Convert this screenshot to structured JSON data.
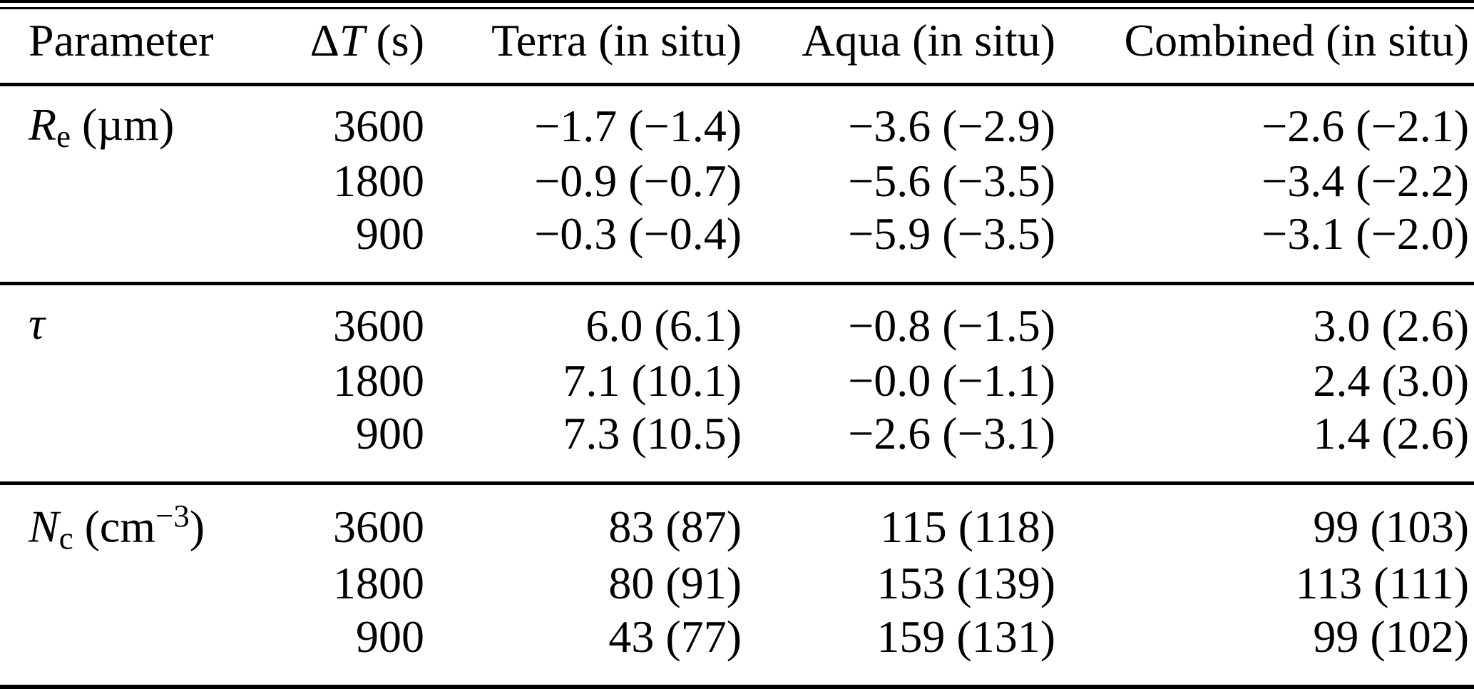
{
  "page": {
    "background_color": "#ffffff",
    "text_color": "#000000",
    "rule_color": "#000000"
  },
  "table": {
    "header": {
      "parameter": "Parameter",
      "delta_t": {
        "delta": "Δ",
        "symbol": "T",
        "unit": " (s)"
      },
      "terra": "Terra (in situ)",
      "aqua": "Aqua (in situ)",
      "combined": "Combined (in situ)"
    },
    "sections": [
      {
        "parameter": {
          "symbol": "R",
          "subscript": "e",
          "unit": " (µm)"
        },
        "rows": [
          {
            "delta_t": "3600",
            "terra": "−1.7 (−1.4)",
            "aqua": "−3.6 (−2.9)",
            "combined": "−2.6 (−2.1)"
          },
          {
            "delta_t": "1800",
            "terra": "−0.9 (−0.7)",
            "aqua": "−5.6 (−3.5)",
            "combined": "−3.4 (−2.2)"
          },
          {
            "delta_t": "900",
            "terra": "−0.3 (−0.4)",
            "aqua": "−5.9 (−3.5)",
            "combined": "−3.1 (−2.0)"
          }
        ]
      },
      {
        "parameter": {
          "symbol": "τ",
          "subscript": "",
          "unit": ""
        },
        "rows": [
          {
            "delta_t": "3600",
            "terra": "6.0 (6.1)",
            "aqua": "−0.8 (−1.5)",
            "combined": "3.0 (2.6)"
          },
          {
            "delta_t": "1800",
            "terra": "7.1 (10.1)",
            "aqua": "−0.0 (−1.1)",
            "combined": "2.4 (3.0)"
          },
          {
            "delta_t": "900",
            "terra": "7.3 (10.5)",
            "aqua": "−2.6 (−3.1)",
            "combined": "1.4 (2.6)"
          }
        ]
      },
      {
        "parameter": {
          "symbol": "N",
          "subscript": "c",
          "unit_pre": " (cm",
          "unit_sup": "−3",
          "unit_post": ")"
        },
        "rows": [
          {
            "delta_t": "3600",
            "terra": "83 (87)",
            "aqua": "115 (118)",
            "combined": "99 (103)"
          },
          {
            "delta_t": "1800",
            "terra": "80 (91)",
            "aqua": "153 (139)",
            "combined": "113 (111)"
          },
          {
            "delta_t": "900",
            "terra": "43 (77)",
            "aqua": "159 (131)",
            "combined": "99 (102)"
          }
        ]
      }
    ]
  },
  "chart_data": {
    "type": "table",
    "columns": [
      "Parameter",
      "ΔT (s)",
      "Terra (in situ)",
      "Aqua (in situ)",
      "Combined (in situ)"
    ],
    "rows": [
      [
        "Re (µm)",
        "3600",
        "−1.7 (−1.4)",
        "−3.6 (−2.9)",
        "−2.6 (−2.1)"
      ],
      [
        "Re (µm)",
        "1800",
        "−0.9 (−0.7)",
        "−5.6 (−3.5)",
        "−3.4 (−2.2)"
      ],
      [
        "Re (µm)",
        "900",
        "−0.3 (−0.4)",
        "−5.9 (−3.5)",
        "−3.1 (−2.0)"
      ],
      [
        "τ",
        "3600",
        "6.0 (6.1)",
        "−0.8 (−1.5)",
        "3.0 (2.6)"
      ],
      [
        "τ",
        "1800",
        "7.1 (10.1)",
        "−0.0 (−1.1)",
        "2.4 (3.0)"
      ],
      [
        "τ",
        "900",
        "7.3 (10.5)",
        "−2.6 (−3.1)",
        "1.4 (2.6)"
      ],
      [
        "Nc (cm−3)",
        "3600",
        "83 (87)",
        "115 (118)",
        "99 (103)"
      ],
      [
        "Nc (cm−3)",
        "1800",
        "80 (91)",
        "153 (139)",
        "113 (111)"
      ],
      [
        "Nc (cm−3)",
        "900",
        "43 (77)",
        "159 (131)",
        "99 (102)"
      ]
    ]
  }
}
